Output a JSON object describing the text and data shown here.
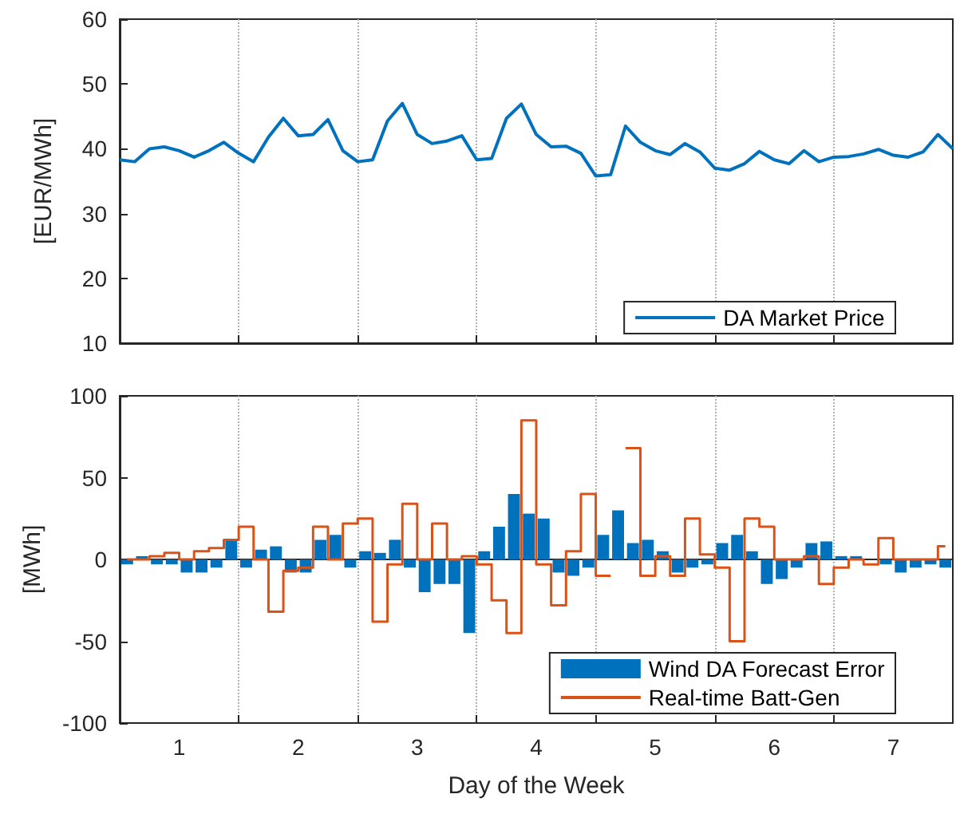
{
  "chart_data": [
    {
      "type": "line",
      "ylabel": "[EUR/MWh]",
      "x": [
        0.5,
        0.625,
        0.75,
        0.875,
        1,
        1.125,
        1.25,
        1.375,
        1.5,
        1.625,
        1.75,
        1.875,
        2,
        2.125,
        2.25,
        2.375,
        2.5,
        2.625,
        2.75,
        2.875,
        3,
        3.125,
        3.25,
        3.375,
        3.5,
        3.625,
        3.75,
        3.875,
        4,
        4.125,
        4.25,
        4.375,
        4.5,
        4.625,
        4.75,
        4.875,
        5,
        5.125,
        5.25,
        5.375,
        5.5,
        5.625,
        5.75,
        5.875,
        6,
        6.125,
        6.25,
        6.375,
        6.5,
        6.625,
        6.75,
        6.875,
        7,
        7.125,
        7.25,
        7.375,
        7.5
      ],
      "series": [
        {
          "name": "DA Market Price",
          "color": "#0072bd",
          "values": [
            38.3,
            38,
            40,
            40.3,
            39.7,
            38.7,
            39.7,
            41,
            39.3,
            38,
            41.8,
            44.7,
            42,
            42.2,
            44.5,
            39.7,
            38,
            38.3,
            44.3,
            47,
            42.2,
            40.8,
            41.2,
            42,
            38.3,
            38.5,
            44.7,
            46.9,
            42.2,
            40.3,
            40.4,
            39.3,
            35.8,
            36,
            43.5,
            41,
            39.7,
            39.1,
            40.8,
            39.5,
            37,
            36.7,
            37.7,
            39.6,
            38.3,
            37.7,
            39.7,
            38,
            38.7,
            38.8,
            39.2,
            39.9,
            39,
            38.7,
            39.5,
            42.2,
            40
          ]
        }
      ],
      "xlim": [
        0.5,
        7.5
      ],
      "xticks": [
        1,
        {
          "value": 1.5,
          "label": null
        },
        2,
        {
          "value": 2.5,
          "label": null
        },
        3,
        {
          "value": 3.5,
          "label": null
        },
        4,
        {
          "value": 4.5,
          "label": null
        },
        5,
        {
          "value": 5.5,
          "label": null
        },
        6,
        {
          "value": 6.5,
          "label": null
        },
        7
      ],
      "ylim": [
        10,
        60
      ],
      "yticks": [
        10,
        20,
        30,
        40,
        50,
        60
      ],
      "grid": "x",
      "legend": "bottom right",
      "tick_labels": "y"
    },
    {
      "type": "bar",
      "xlabel": "Day of the Week",
      "ylabel": "[MWh]",
      "x": [
        0.5625,
        0.6875,
        0.8125,
        0.9375,
        1.0625,
        1.1875,
        1.3125,
        1.4375,
        1.5625,
        1.6875,
        1.8125,
        1.9375,
        2.0625,
        2.1875,
        2.3125,
        2.4375,
        2.5625,
        2.6875,
        2.8125,
        2.9375,
        3.0625,
        3.1875,
        3.3125,
        3.4375,
        3.5625,
        3.6875,
        3.8125,
        3.9375,
        4.0625,
        4.1875,
        4.3125,
        4.4375,
        4.5625,
        4.6875,
        4.8125,
        4.9375,
        5.0625,
        5.1875,
        5.3125,
        5.4375,
        5.5625,
        5.6875,
        5.8125,
        5.9375,
        6.0625,
        6.1875,
        6.3125,
        6.4375,
        6.5625,
        6.6875,
        6.8125,
        6.9375,
        7.0625,
        7.1875,
        7.3125,
        7.4375
      ],
      "series": [
        {
          "name": "Wind DA Forecast Error",
          "color": "#0072bd",
          "values": [
            -3,
            2,
            -3,
            -3,
            -8,
            -8,
            -5,
            12,
            -5,
            6,
            8,
            -8,
            -8,
            12,
            15,
            -5,
            5,
            4,
            12,
            -5,
            -20,
            -15,
            -15,
            -45,
            5,
            20,
            40,
            28,
            25,
            -8,
            -10,
            -5,
            15,
            30,
            10,
            12,
            5,
            -8,
            -5,
            -3,
            10,
            15,
            5,
            -15,
            -12,
            -5,
            10,
            11,
            2,
            2,
            0,
            -3,
            -8,
            -5,
            -3,
            -5
          ]
        },
        {
          "name": "Real-time Batt-Gen",
          "type": "step",
          "color": "#d95319",
          "values": [
            0,
            0,
            2,
            4,
            0,
            5,
            7,
            12,
            20,
            0,
            -32,
            -7,
            -5,
            20,
            0,
            22,
            25,
            -38,
            -3,
            34,
            0,
            22,
            0,
            2,
            -3,
            -25,
            -45,
            85,
            -3,
            -28,
            5,
            40,
            -10,
            null,
            68,
            -10,
            2,
            -10,
            25,
            3,
            -5,
            -50,
            25,
            20,
            0,
            0,
            2,
            -15,
            -5,
            0,
            -3,
            13,
            0,
            0,
            0,
            8
          ]
        }
      ],
      "xlim": [
        0.5,
        7.5
      ],
      "xticks": [
        1,
        {
          "value": 1.5,
          "label": null
        },
        2,
        {
          "value": 2.5,
          "label": null
        },
        3,
        {
          "value": 3.5,
          "label": null
        },
        4,
        {
          "value": 4.5,
          "label": null
        },
        5,
        {
          "value": 5.5,
          "label": null
        },
        6,
        {
          "value": 6.5,
          "label": null
        },
        7
      ],
      "ylim": [
        -100,
        100
      ],
      "yticks": [
        -100,
        -50,
        0,
        50,
        100
      ],
      "grid": "x",
      "legend": "bottom right"
    }
  ]
}
